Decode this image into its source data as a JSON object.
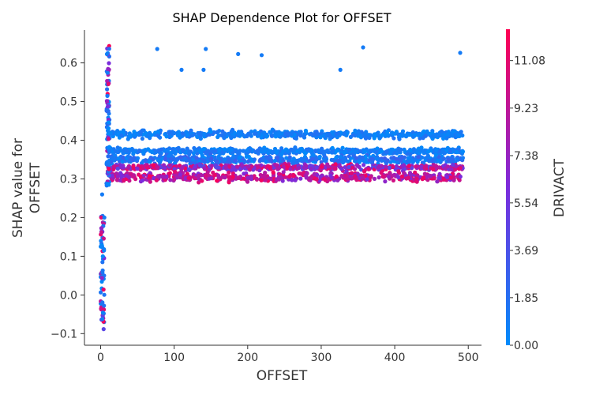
{
  "chart_data": {
    "type": "scatter",
    "title": "SHAP Dependence Plot for OFFSET",
    "xlabel": "OFFSET",
    "ylabel": "SHAP value for\nOFFSET",
    "xlim": [
      -22,
      518
    ],
    "ylim": [
      -0.13,
      0.685
    ],
    "xticks": [
      0,
      100,
      200,
      300,
      400,
      500
    ],
    "yticks": [
      -0.1,
      0.0,
      0.1,
      0.2,
      0.3,
      0.4,
      0.5,
      0.6
    ],
    "grid": false,
    "colorbar": {
      "label": "DRIVACT",
      "min": 0.0,
      "max": 12.3,
      "ticks": [
        "0.00",
        "1.85",
        "3.69",
        "5.54",
        "7.38",
        "9.23",
        "11.08"
      ],
      "colors": {
        "low": "#008bfb",
        "mid": "#7c2bdc",
        "high": "#ff0052"
      }
    },
    "points_description_bands": [
      {
        "y": 0.415,
        "spread": 0.008,
        "color_value_range": [
          0,
          1.8
        ]
      },
      {
        "y": 0.372,
        "spread": 0.006,
        "color_value_range": [
          0,
          1.8
        ]
      },
      {
        "y": 0.35,
        "spread": 0.008,
        "color_value_range": [
          0,
          3.0
        ]
      },
      {
        "y": 0.33,
        "spread": 0.006,
        "color_value_range": [
          4,
          12
        ]
      },
      {
        "y": 0.305,
        "spread": 0.01,
        "color_value_range": [
          6,
          12
        ]
      }
    ],
    "outliers": [
      {
        "x": 77,
        "y": 0.636,
        "c": 1
      },
      {
        "x": 110,
        "y": 0.582,
        "c": 1
      },
      {
        "x": 140,
        "y": 0.582,
        "c": 1
      },
      {
        "x": 143,
        "y": 0.636,
        "c": 1
      },
      {
        "x": 187,
        "y": 0.623,
        "c": 1
      },
      {
        "x": 219,
        "y": 0.62,
        "c": 1
      },
      {
        "x": 326,
        "y": 0.582,
        "c": 1
      },
      {
        "x": 357,
        "y": 0.64,
        "c": 1
      },
      {
        "x": 489,
        "y": 0.626,
        "c": 1
      }
    ],
    "low_offset_cluster": {
      "x_range": [
        0,
        12
      ],
      "y_range": [
        -0.095,
        0.65
      ]
    }
  }
}
